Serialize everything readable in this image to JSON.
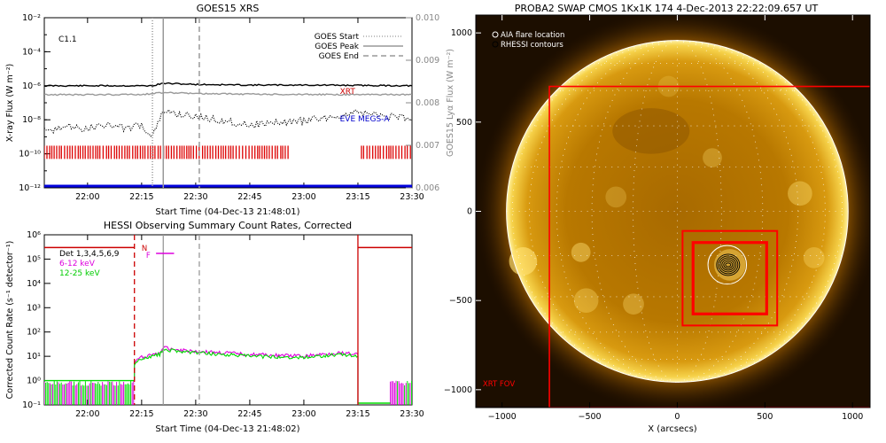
{
  "chart_data": [
    {
      "type": "line",
      "title": "GOES15 XRS",
      "xlabel": "Start Time (04-Dec-13 21:48:01)",
      "ylabel": "X-ray Flux (W m⁻²)",
      "y2label": "GOES15 Lyα Flux (W m⁻²)",
      "x_ticks": [
        "22:00",
        "22:15",
        "22:30",
        "22:45",
        "23:00",
        "23:15",
        "23:30"
      ],
      "y_ticks": [
        "10⁻²",
        "10⁻⁴",
        "10⁻⁶",
        "10⁻⁸",
        "10⁻¹⁰",
        "10⁻¹²"
      ],
      "y2_ticks": [
        "0.010",
        "0.009",
        "0.008",
        "0.007",
        "0.006"
      ],
      "y_scale": "log",
      "ylim": [
        1e-12,
        0.01
      ],
      "y2lim": [
        0.006,
        0.01
      ],
      "flare_class": "C1.1",
      "legend": {
        "placement": "top-right",
        "entries": [
          "GOES Start",
          "GOES Peak",
          "GOES End"
        ]
      },
      "vlines": [
        {
          "name": "GOES Start",
          "x": "22:18",
          "style": "dotted"
        },
        {
          "name": "GOES Peak",
          "x": "22:21",
          "style": "solid"
        },
        {
          "name": "GOES End",
          "x": "22:31",
          "style": "dashed"
        }
      ],
      "series": [
        {
          "name": "XRT",
          "color": "#cc0000",
          "label_at": "23:10"
        },
        {
          "name": "EVE MEGS-A",
          "color": "#0000cc",
          "label_at": "23:10"
        }
      ],
      "traces": [
        {
          "x": [
            "21:48",
            "22:00",
            "22:10",
            "22:18",
            "22:21",
            "22:30",
            "22:45",
            "23:00",
            "23:15",
            "23:30"
          ],
          "y": [
            1e-06,
            1e-06,
            1e-06,
            1e-06,
            1.4e-06,
            1.2e-06,
            1.1e-06,
            1.1e-06,
            1.05e-06,
            1e-06
          ],
          "color": "#000000",
          "style": "solid"
        },
        {
          "x": [
            "21:48",
            "22:00",
            "22:15",
            "22:21",
            "22:30",
            "22:45",
            "23:00",
            "23:15",
            "23:30"
          ],
          "y": [
            3e-07,
            3e-07,
            3e-07,
            4e-07,
            3.5e-07,
            3.2e-07,
            3.1e-07,
            3e-07,
            3e-07
          ],
          "color": "#999999",
          "style": "solid"
        },
        {
          "x": [
            "21:48",
            "21:55",
            "22:00",
            "22:05",
            "22:10",
            "22:15",
            "22:18",
            "22:21",
            "22:30",
            "22:45",
            "23:00",
            "23:15",
            "23:30"
          ],
          "y": [
            2e-09,
            4e-09,
            3e-09,
            6e-09,
            3e-09,
            5e-09,
            1e-09,
            3e-08,
            1.5e-08,
            5e-09,
            9e-09,
            2.5e-08,
            1.2e-08
          ],
          "color": "#000000",
          "style": "dotted"
        }
      ],
      "observation_bars": {
        "color": "#dd0000",
        "intervals": [
          [
            "21:48",
            "22:56"
          ],
          [
            "23:16",
            "23:30"
          ]
        ]
      },
      "baseline": {
        "color": "#0000dd",
        "value": 1e-12
      }
    },
    {
      "type": "line",
      "title": "HESSI Observing Summary Count Rates, Corrected",
      "xlabel": "Start Time (04-Dec-13 21:48:02)",
      "ylabel": "Corrected Count Rate (s⁻¹ detector⁻¹)",
      "x_ticks": [
        "22:00",
        "22:15",
        "22:30",
        "22:45",
        "23:00",
        "23:15",
        "23:30"
      ],
      "y_ticks": [
        "10⁶",
        "10⁵",
        "10⁴",
        "10³",
        "10²",
        "10¹",
        "10⁰",
        "10⁻¹"
      ],
      "y_scale": "log",
      "ylim": [
        0.1,
        1000000
      ],
      "legend": {
        "placement": "top-left",
        "entries": [
          "Det 1,3,4,5,6,9",
          "6-12 keV",
          "12-25 keV"
        ]
      },
      "markers": [
        {
          "label": "N",
          "x": "22:15"
        },
        {
          "label": "F",
          "x": "22:16"
        }
      ],
      "vlines": [
        {
          "x": "22:13",
          "style": "dashed",
          "color": "#cc0000"
        },
        {
          "x": "22:21",
          "style": "solid",
          "color": "#999999"
        },
        {
          "x": "22:31",
          "style": "dashed",
          "color": "#999999"
        },
        {
          "x": "23:15",
          "style": "solid",
          "color": "#cc0000"
        }
      ],
      "series": [
        {
          "name": "6-12 keV",
          "color": "#dd00dd",
          "x": [
            "22:13",
            "22:15",
            "22:20",
            "22:21",
            "22:30",
            "22:45",
            "23:00",
            "23:10",
            "23:15"
          ],
          "y": [
            6,
            9,
            14,
            22,
            16,
            12,
            10,
            14,
            12
          ]
        },
        {
          "name": "12-25 keV",
          "color": "#00dd00",
          "x": [
            "22:13",
            "22:15",
            "22:20",
            "22:21",
            "22:30",
            "22:45",
            "23:00",
            "23:10",
            "23:15"
          ],
          "y": [
            5,
            8,
            12,
            19,
            14,
            10,
            9,
            12,
            10
          ]
        }
      ],
      "attenuator": {
        "color": "#cc0000",
        "high": 300000,
        "intervals": [
          [
            "21:48",
            "22:13"
          ],
          [
            "23:15",
            "23:30"
          ]
        ]
      }
    },
    {
      "type": "heatmap",
      "title": "PROBA2 SWAP CMOS 1Kx1K 174  4-Dec-2013 22:22:09.657 UT",
      "xlabel": "X (arcsecs)",
      "ylabel": "",
      "xlim": [
        -1150,
        1100
      ],
      "ylim": [
        -1100,
        1100
      ],
      "x_ticks": [
        "−1000",
        "−500",
        "0",
        "500",
        "1000"
      ],
      "y_ticks": [
        "1000",
        "500",
        "0",
        "−500",
        "−1000"
      ],
      "solar_radius": 975,
      "legend": {
        "placement": "top-left",
        "entries": [
          "AIA flare location",
          "RHESSI contours"
        ]
      },
      "xrt_fov": {
        "label": "XRT FOV",
        "color": "#ff0000",
        "x": [
          -730,
          1150
        ],
        "y": [
          -1100,
          700
        ]
      },
      "boxes": [
        {
          "color": "#ff0000",
          "x": [
            30,
            570
          ],
          "y": [
            -640,
            -110
          ]
        },
        {
          "color": "#ff0000",
          "x": [
            90,
            510
          ],
          "y": [
            -575,
            -175
          ]
        }
      ],
      "flare_location": {
        "x": 285,
        "y": -300
      }
    }
  ]
}
